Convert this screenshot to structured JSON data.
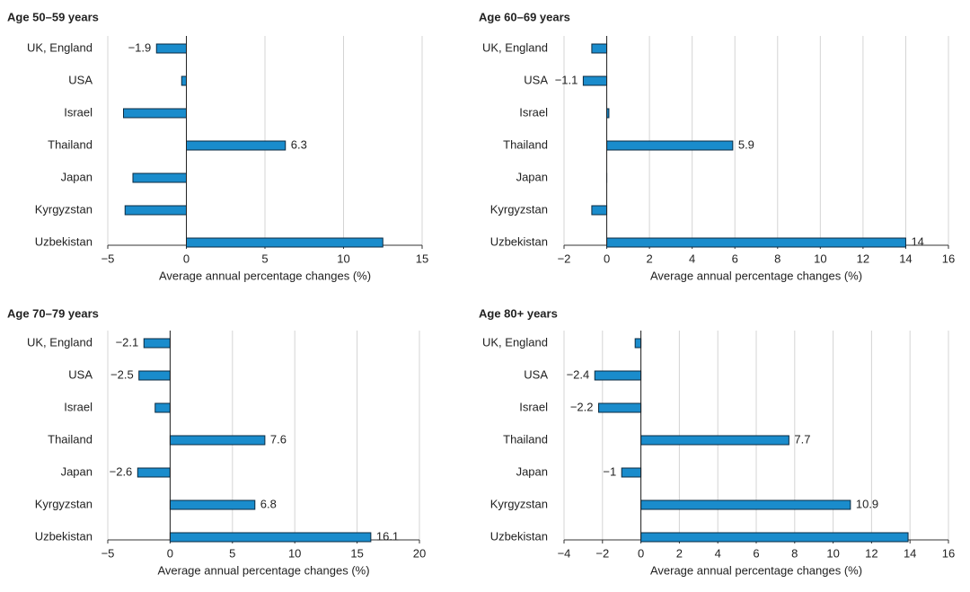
{
  "chart_data": [
    {
      "type": "bar",
      "orientation": "horizontal",
      "title": "Age 50–59 years",
      "xlabel": "Average annual percentage changes (%)",
      "categories": [
        "UK, England",
        "USA",
        "Israel",
        "Thailand",
        "Japan",
        "Kyrgyzstan",
        "Uzbekistan"
      ],
      "values": [
        -1.9,
        -0.3,
        -4.0,
        6.3,
        -3.4,
        -3.9,
        12.5
      ],
      "value_labels": [
        "−1.9",
        null,
        null,
        "6.3",
        null,
        null,
        null
      ],
      "color": "#1a8ccc",
      "grid": true,
      "xlim": [
        -5,
        15
      ],
      "xticks": [
        {
          "value": -5,
          "label": "−5"
        },
        0,
        5,
        10,
        15
      ]
    },
    {
      "type": "bar",
      "orientation": "horizontal",
      "title": "Age 60–69 years",
      "xlabel": "Average annual percentage changes (%)",
      "categories": [
        "UK, England",
        "USA",
        "Israel",
        "Thailand",
        "Japan",
        "Kyrgyzstan",
        "Uzbekistan"
      ],
      "values": [
        -0.7,
        -1.1,
        0.1,
        5.9,
        0,
        -0.7,
        14
      ],
      "value_labels": [
        null,
        "−1.1",
        null,
        "5.9",
        null,
        null,
        "14"
      ],
      "color": "#1a8ccc",
      "grid": true,
      "xlim": [
        -2,
        16
      ],
      "xticks": [
        {
          "value": -2,
          "label": "−2"
        },
        0,
        2,
        4,
        6,
        8,
        10,
        12,
        14,
        16
      ]
    },
    {
      "type": "bar",
      "orientation": "horizontal",
      "title": "Age 70–79 years",
      "xlabel": "Average annual percentage changes (%)",
      "categories": [
        "UK, England",
        "USA",
        "Israel",
        "Thailand",
        "Japan",
        "Kyrgyzstan",
        "Uzbekistan"
      ],
      "values": [
        -2.1,
        -2.5,
        -1.2,
        7.6,
        -2.6,
        6.8,
        16.1
      ],
      "value_labels": [
        "−2.1",
        "−2.5",
        null,
        "7.6",
        "−2.6",
        "6.8",
        "16.1"
      ],
      "color": "#1a8ccc",
      "grid": true,
      "xlim": [
        -5,
        20
      ],
      "xticks": [
        {
          "value": -5,
          "label": "−5"
        },
        0,
        5,
        10,
        15,
        20
      ]
    },
    {
      "type": "bar",
      "orientation": "horizontal",
      "title": "Age 80+ years",
      "xlabel": "Average annual percentage changes (%)",
      "categories": [
        "UK, England",
        "USA",
        "Israel",
        "Thailand",
        "Japan",
        "Kyrgyzstan",
        "Uzbekistan"
      ],
      "values": [
        -0.3,
        -2.4,
        -2.2,
        7.7,
        -1,
        10.9,
        13.9
      ],
      "value_labels": [
        null,
        "−2.4",
        "−2.2",
        "7.7",
        "−1",
        "10.9",
        null
      ],
      "color": "#1a8ccc",
      "grid": true,
      "xlim": [
        -4,
        16
      ],
      "xticks": [
        {
          "value": -4,
          "label": "−4"
        },
        {
          "value": -2,
          "label": "−2"
        },
        0,
        2,
        4,
        6,
        8,
        10,
        12,
        14,
        16
      ]
    }
  ]
}
